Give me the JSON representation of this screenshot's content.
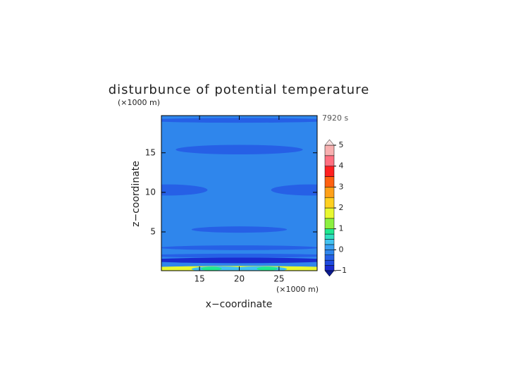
{
  "chart_data": {
    "type": "contour",
    "title": "disturbunce of potential temperature",
    "y_unit": "(×1000 m)",
    "x_unit": "(×1000 m)",
    "x_label": "x−coordinate",
    "y_label": "z−coordinate",
    "annotation": "7920 s",
    "xlim": [
      10.2,
      29.8
    ],
    "ylim": [
      0.1,
      19.7
    ],
    "xticks": [
      15,
      20,
      25
    ],
    "yticks": [
      5,
      10,
      15
    ],
    "fill_value": -0.1,
    "regions": [
      {
        "x": 20,
        "z": 19.1,
        "rx": 12,
        "rz": 0.3,
        "value": -0.3
      },
      {
        "x": 20,
        "z": 15.4,
        "rx": 8,
        "rz": 0.6,
        "value": -0.3
      },
      {
        "x": 11,
        "z": 10.3,
        "rx": 5,
        "rz": 0.7,
        "value": -0.3
      },
      {
        "x": 29,
        "z": 10.3,
        "rx": 5,
        "rz": 0.7,
        "value": -0.3
      },
      {
        "x": 20,
        "z": 5.3,
        "rx": 6,
        "rz": 0.4,
        "value": -0.3
      },
      {
        "x": 20,
        "z": 3.0,
        "rx": 10,
        "rz": 0.3,
        "value": -0.3
      },
      {
        "x": 20,
        "z": 2.0,
        "rx": 12,
        "rz": 0.25,
        "value": -0.5
      },
      {
        "x": 20,
        "z": 1.4,
        "rx": 12,
        "rz": 0.35,
        "value": -0.8
      },
      {
        "x": 20,
        "z": 0.3,
        "rx": 14,
        "rz": 0.4,
        "value": 1.6
      },
      {
        "x": 17.5,
        "z": 0.3,
        "rx": 3.5,
        "rz": 0.35,
        "value": 0.4
      },
      {
        "x": 22.5,
        "z": 0.3,
        "rx": 3.5,
        "rz": 0.35,
        "value": 0.4
      },
      {
        "x": 16.5,
        "z": 0.35,
        "rx": 1.3,
        "rz": 0.25,
        "value": 0.8
      },
      {
        "x": 23.5,
        "z": 0.35,
        "rx": 1.3,
        "rz": 0.25,
        "value": 0.8
      }
    ],
    "levels": [
      -1,
      -0.75,
      -0.5,
      -0.25,
      0,
      0.25,
      0.5,
      0.75,
      1,
      1.5,
      2,
      2.5,
      3,
      3.5,
      4,
      4.5,
      5
    ],
    "colors": [
      "#1a2bd0",
      "#1f4be0",
      "#2660e6",
      "#2f86ec",
      "#3aa0f2",
      "#42c3f0",
      "#30e0c0",
      "#20e890",
      "#8cf040",
      "#e8f830",
      "#ffd020",
      "#ffa018",
      "#ff6010",
      "#ff2020",
      "#ff7080",
      "#f8b0b0"
    ],
    "under_color": "#0a1a90",
    "over_color": "#f8e0e0",
    "colorbar_ticks": [
      {
        "value": -1,
        "label": "−1"
      },
      0,
      1,
      2,
      3,
      4,
      5
    ]
  }
}
